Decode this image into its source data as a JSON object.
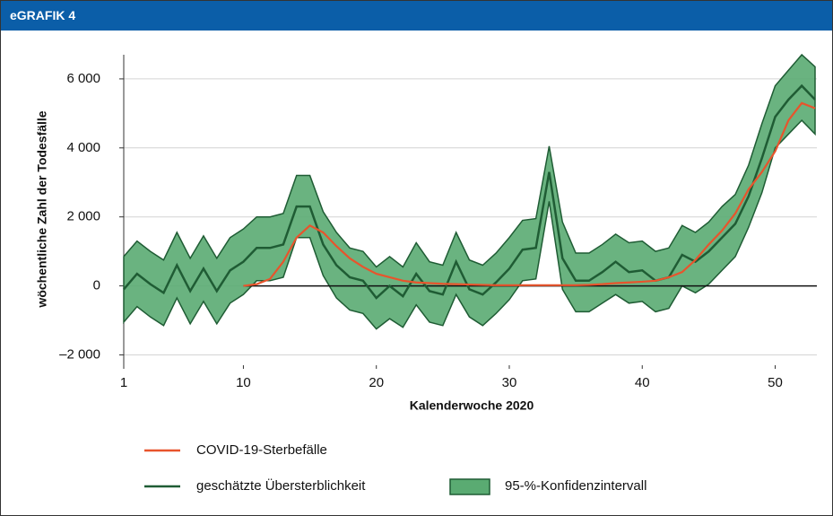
{
  "header": {
    "title": "eGRAFIK 4"
  },
  "chart_data": {
    "type": "line",
    "ylabel": "wöchentliche Zahl der Todesfälle",
    "xlabel": "Kalenderwoche 2020",
    "x": [
      1,
      2,
      3,
      4,
      5,
      6,
      7,
      8,
      9,
      10,
      11,
      12,
      13,
      14,
      15,
      16,
      17,
      18,
      19,
      20,
      21,
      22,
      23,
      24,
      25,
      26,
      27,
      28,
      29,
      30,
      31,
      32,
      33,
      34,
      35,
      36,
      37,
      38,
      39,
      40,
      41,
      42,
      43,
      44,
      45,
      46,
      47,
      48,
      49,
      50,
      51,
      52,
      53
    ],
    "xlim": [
      1,
      53
    ],
    "xticks": [
      1,
      10,
      20,
      30,
      40,
      50
    ],
    "ylim": [
      -2300,
      6700
    ],
    "yticks": [
      {
        "value": -2000,
        "label": "–2 000"
      },
      0,
      {
        "value": 2000,
        "label": "2 000"
      },
      {
        "value": 4000,
        "label": "4 000"
      },
      {
        "value": 6000,
        "label": "6 000"
      }
    ],
    "grid": true,
    "series": [
      {
        "name": "COVID-19-Sterbefälle",
        "color": "#e8542c",
        "values": [
          null,
          null,
          null,
          null,
          null,
          null,
          null,
          null,
          null,
          0,
          50,
          200,
          700,
          1400,
          1750,
          1550,
          1150,
          800,
          550,
          350,
          250,
          150,
          100,
          80,
          60,
          50,
          40,
          30,
          20,
          20,
          20,
          20,
          20,
          20,
          20,
          30,
          50,
          80,
          100,
          120,
          150,
          250,
          400,
          750,
          1200,
          1600,
          2100,
          2800,
          3300,
          3900,
          4800,
          5300,
          5150
        ]
      },
      {
        "name": "geschätzte Übersterblichkeit",
        "color": "#1f5c34",
        "values": [
          -100,
          350,
          50,
          -200,
          600,
          -150,
          500,
          -150,
          450,
          700,
          1100,
          1100,
          1200,
          2300,
          2300,
          1200,
          600,
          250,
          150,
          -350,
          0,
          -300,
          350,
          -150,
          -250,
          700,
          -100,
          -250,
          100,
          500,
          1050,
          1100,
          3300,
          800,
          150,
          150,
          400,
          700,
          400,
          450,
          150,
          250,
          900,
          700,
          1000,
          1400,
          1800,
          2600,
          3700,
          4900,
          5400,
          5800,
          5400
        ]
      }
    ],
    "band": {
      "name": "95-%-Konfidenzintervall",
      "color": "#5aab72",
      "edge_color": "#1f5c34",
      "upper": [
        850,
        1300,
        1000,
        750,
        1550,
        800,
        1450,
        800,
        1400,
        1650,
        2000,
        2000,
        2100,
        3200,
        3200,
        2150,
        1550,
        1100,
        1000,
        550,
        850,
        550,
        1250,
        700,
        600,
        1550,
        750,
        600,
        950,
        1400,
        1900,
        1950,
        4050,
        1850,
        950,
        950,
        1200,
        1500,
        1250,
        1300,
        1000,
        1100,
        1750,
        1550,
        1850,
        2300,
        2650,
        3500,
        4700,
        5800,
        6250,
        6700,
        6350
      ],
      "lower": [
        -1050,
        -600,
        -900,
        -1150,
        -350,
        -1100,
        -450,
        -1100,
        -500,
        -250,
        150,
        150,
        250,
        1400,
        1400,
        300,
        -350,
        -700,
        -800,
        -1250,
        -950,
        -1200,
        -550,
        -1050,
        -1150,
        -250,
        -900,
        -1150,
        -800,
        -400,
        150,
        200,
        2450,
        -100,
        -750,
        -750,
        -500,
        -250,
        -500,
        -450,
        -750,
        -650,
        0,
        -200,
        50,
        450,
        850,
        1700,
        2700,
        4000,
        4400,
        4800,
        4400
      ]
    }
  }
}
